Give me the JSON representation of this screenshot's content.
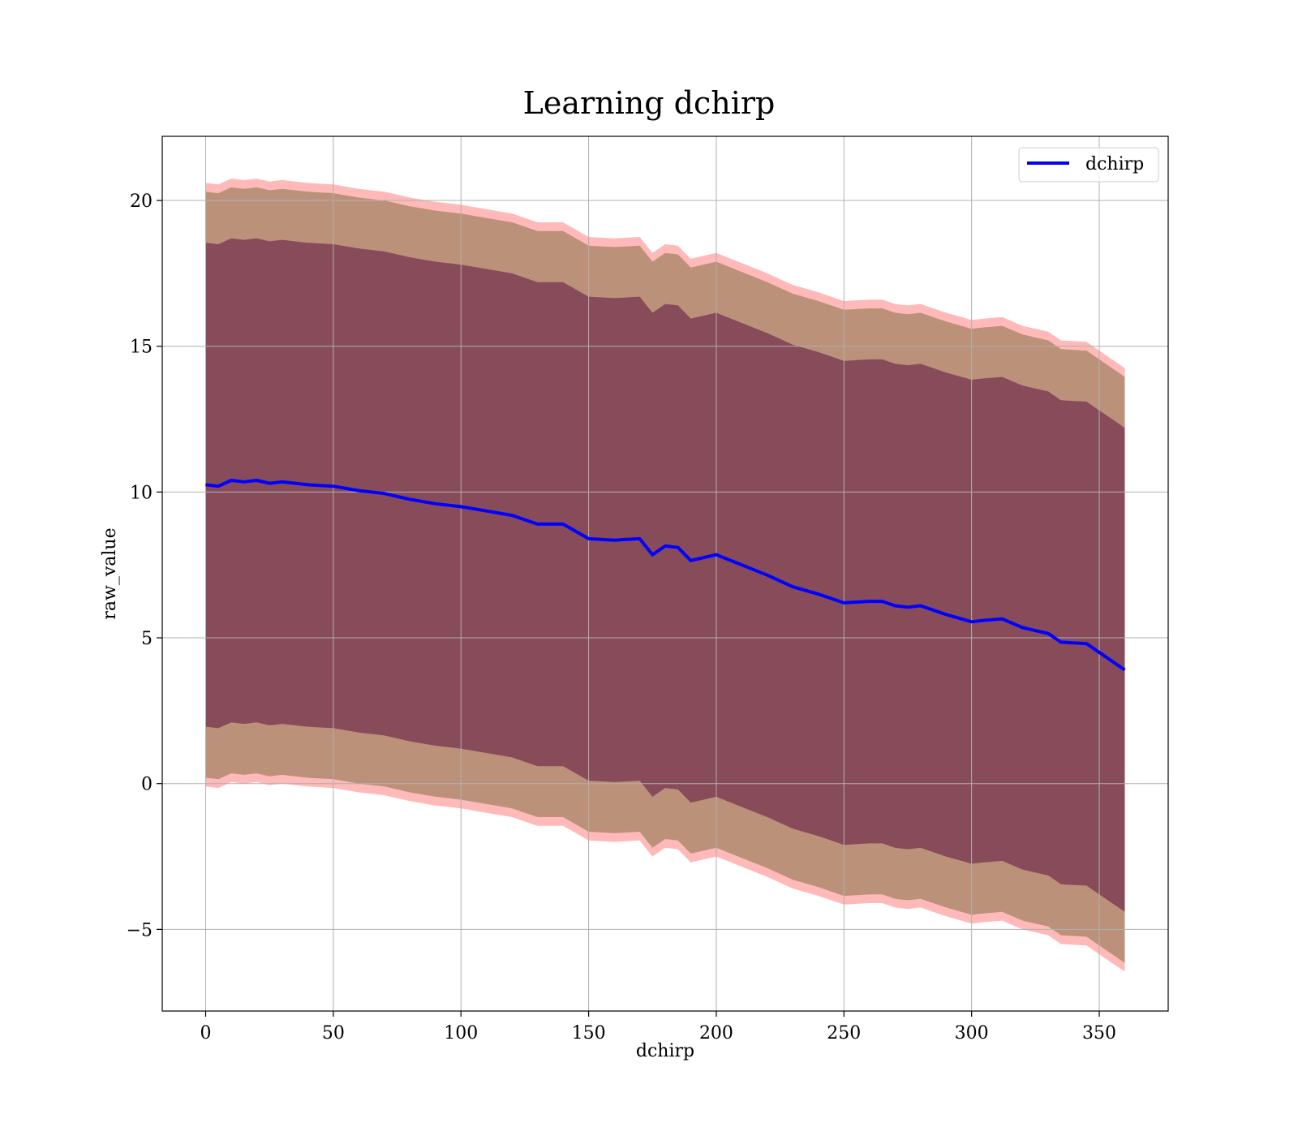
{
  "chart_data": {
    "type": "line",
    "title": "Learning dchirp",
    "xlabel": "dchirp",
    "ylabel": "raw_value",
    "xlim": [
      -17,
      377
    ],
    "ylim": [
      -7.8,
      22.2
    ],
    "xticks": [
      0,
      50,
      100,
      150,
      200,
      250,
      300,
      350
    ],
    "xtick_labels": [
      "0",
      "50",
      "100",
      "150",
      "200",
      "250",
      "300",
      "350"
    ],
    "yticks": [
      -5,
      0,
      5,
      10,
      15,
      20
    ],
    "ytick_labels": [
      "−5",
      "0",
      "5",
      "10",
      "15",
      "20"
    ],
    "grid": true,
    "legend": {
      "position": "upper right",
      "entries": [
        "dchirp"
      ]
    },
    "colors": {
      "line": "#0000ff",
      "band_outer": "#ff8080",
      "band_mid": "#a08060",
      "band_inner": "#7a3a52",
      "grid": "#b0b0b0"
    },
    "series": [
      {
        "name": "dchirp",
        "x": [
          0,
          5,
          10,
          15,
          20,
          25,
          30,
          40,
          50,
          60,
          70,
          80,
          90,
          100,
          110,
          120,
          130,
          140,
          150,
          160,
          170,
          175,
          180,
          185,
          190,
          195,
          200,
          210,
          220,
          230,
          240,
          250,
          260,
          265,
          270,
          275,
          280,
          290,
          300,
          305,
          312,
          320,
          330,
          335,
          345,
          360
        ],
        "y": [
          10.25,
          10.2,
          10.4,
          10.35,
          10.4,
          10.3,
          10.35,
          10.25,
          10.2,
          10.05,
          9.95,
          9.75,
          9.6,
          9.5,
          9.35,
          9.2,
          8.9,
          8.9,
          8.4,
          8.35,
          8.4,
          7.85,
          8.15,
          8.1,
          7.65,
          7.75,
          7.85,
          7.5,
          7.15,
          6.75,
          6.5,
          6.2,
          6.25,
          6.25,
          6.1,
          6.05,
          6.1,
          5.8,
          5.55,
          5.6,
          5.65,
          5.35,
          5.15,
          4.85,
          4.8,
          3.9
        ]
      }
    ],
    "bands": [
      {
        "name": "outer",
        "upper_offset": 10.35,
        "lower_offset": -10.35
      },
      {
        "name": "mid",
        "upper_offset": 10.05,
        "lower_offset": -10.05
      },
      {
        "name": "inner",
        "upper_offset": 8.3,
        "lower_offset": -8.3
      }
    ]
  }
}
